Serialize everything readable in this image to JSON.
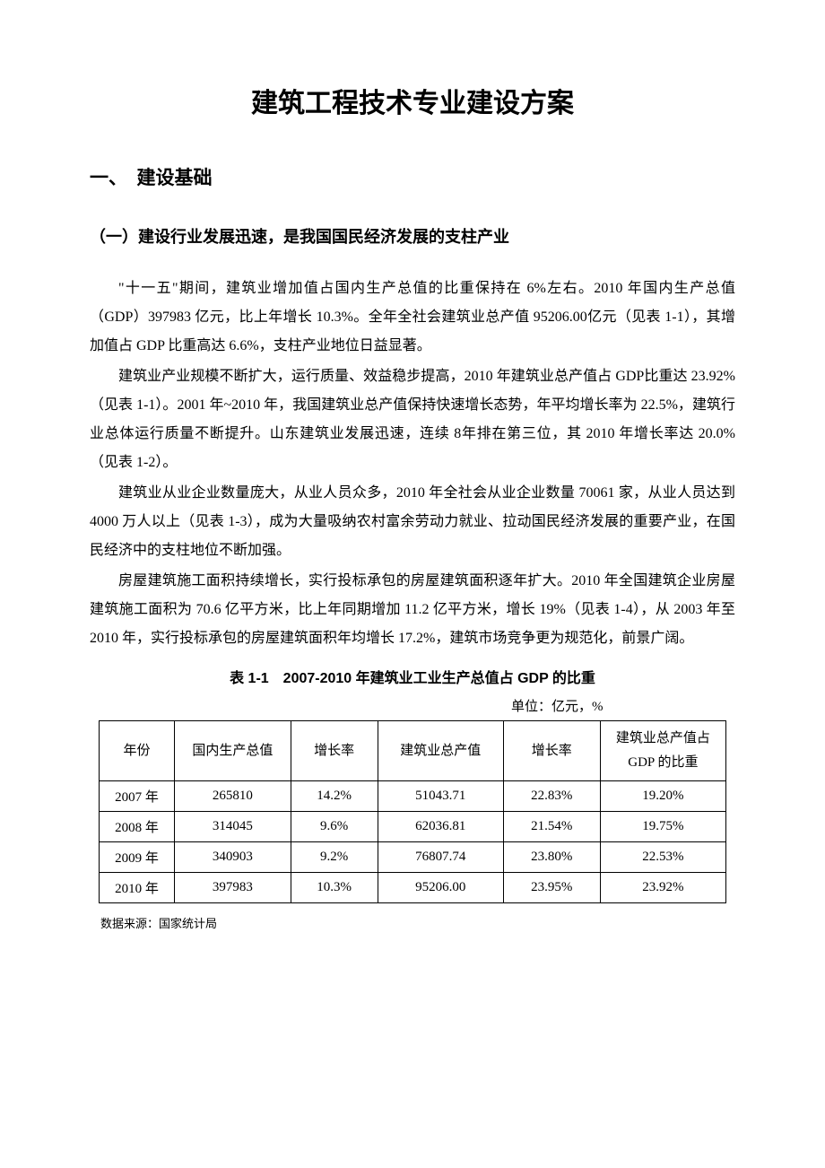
{
  "title": "建筑工程技术专业建设方案",
  "section1": {
    "heading": "一、　建设基础",
    "sub1": {
      "heading": "（一）建设行业发展迅速，是我国国民经济发展的支柱产业",
      "p1": "\"十一五\"期间，建筑业增加值占国内生产总值的比重保持在 6%左右。2010 年国内生产总值（GDP）397983 亿元，比上年增长 10.3%。全年全社会建筑业总产值 95206.00亿元（见表 1-1），其增加值占 GDP 比重高达 6.6%，支柱产业地位日益显著。",
      "p2": "建筑业产业规模不断扩大，运行质量、效益稳步提高，2010 年建筑业总产值占 GDP比重达 23.92%（见表 1-1）。2001 年~2010 年，我国建筑业总产值保持快速增长态势，年平均增长率为 22.5%，建筑行业总体运行质量不断提升。山东建筑业发展迅速，连续 8年排在第三位，其 2010 年增长率达 20.0%（见表 1-2）。",
      "p3": "建筑业从业企业数量庞大，从业人员众多，2010 年全社会从业企业数量 70061 家，从业人员达到 4000 万人以上（见表 1-3），成为大量吸纳农村富余劳动力就业、拉动国民经济发展的重要产业，在国民经济中的支柱地位不断加强。",
      "p4": "房屋建筑施工面积持续增长，实行投标承包的房屋建筑面积逐年扩大。2010 年全国建筑企业房屋建筑施工面积为 70.6 亿平方米，比上年同期增加 11.2 亿平方米，增长 19%（见表 1-4），从 2003 年至 2010 年，实行投标承包的房屋建筑面积年均增长 17.2%，建筑市场竞争更为规范化，前景广阔。"
    }
  },
  "table1": {
    "title": "表 1-1　2007-2010 年建筑业工业生产总值占 GDP 的比重",
    "unit": "单位：亿元，%",
    "columns": [
      "年份",
      "国内生产总值",
      "增长率",
      "建筑业总产值",
      "增长率",
      "建筑业总产值占\nGDP 的比重"
    ],
    "rows": [
      [
        "2007 年",
        "265810",
        "14.2%",
        "51043.71",
        "22.83%",
        "19.20%"
      ],
      [
        "2008 年",
        "314045",
        "9.6%",
        "62036.81",
        "21.54%",
        "19.75%"
      ],
      [
        "2009 年",
        "340903",
        "9.2%",
        "76807.74",
        "23.80%",
        "22.53%"
      ],
      [
        "2010 年",
        "397983",
        "10.3%",
        "95206.00",
        "23.95%",
        "23.92%"
      ]
    ],
    "source": "数据来源：国家统计局"
  }
}
